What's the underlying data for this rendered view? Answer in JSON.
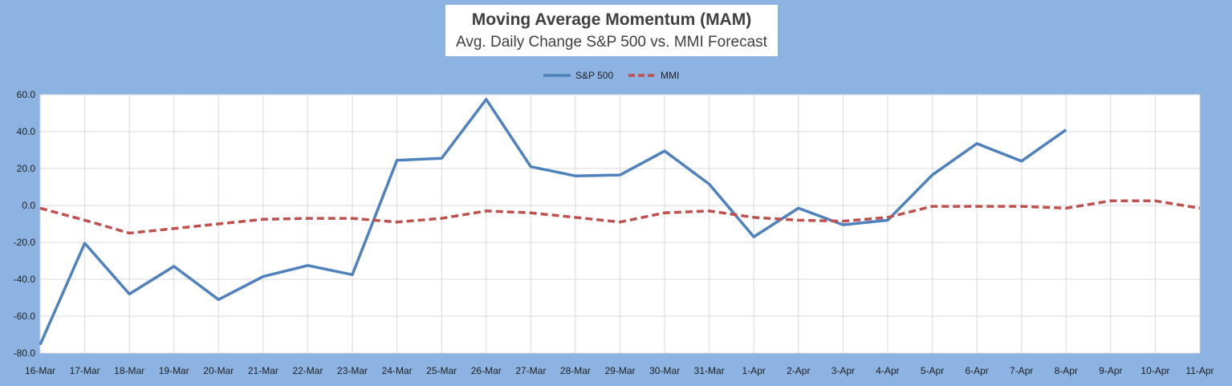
{
  "chart_data": {
    "type": "line",
    "title": "Moving Average Momentum (MAM)",
    "subtitle": "Avg. Daily Change S&P 500 vs. MMI Forecast",
    "categories": [
      "16-Mar",
      "17-Mar",
      "18-Mar",
      "19-Mar",
      "20-Mar",
      "21-Mar",
      "22-Mar",
      "23-Mar",
      "24-Mar",
      "25-Mar",
      "26-Mar",
      "27-Mar",
      "28-Mar",
      "29-Mar",
      "30-Mar",
      "31-Mar",
      "1-Apr",
      "2-Apr",
      "3-Apr",
      "4-Apr",
      "5-Apr",
      "6-Apr",
      "7-Apr",
      "8-Apr",
      "9-Apr",
      "10-Apr",
      "11-Apr"
    ],
    "series": [
      {
        "name": "S&P 500",
        "color": "#4f81bd",
        "dash": "solid",
        "values": [
          -75.5,
          -20.5,
          -48.0,
          -33.0,
          -51.0,
          -38.5,
          -32.5,
          -37.5,
          24.5,
          25.5,
          57.5,
          21.0,
          16.0,
          16.5,
          29.5,
          11.5,
          -17.0,
          -1.5,
          -10.5,
          -8.0,
          16.5,
          33.5,
          24.0,
          41.0,
          null,
          null,
          null
        ]
      },
      {
        "name": "MMI",
        "color": "#c0504d",
        "dash": "dashed",
        "values": [
          -1.5,
          -8.0,
          -15.0,
          -12.5,
          -10.0,
          -7.5,
          -7.0,
          -7.0,
          -9.0,
          -7.0,
          -3.0,
          -4.0,
          -6.5,
          -9.0,
          -4.0,
          -3.0,
          -6.5,
          -8.0,
          -8.5,
          -6.5,
          -0.5,
          -0.5,
          -0.5,
          -1.5,
          2.5,
          2.5,
          -1.5
        ]
      }
    ],
    "y_ticks": [
      "60.0",
      "40.0",
      "20.0",
      "0.0",
      "-20.0",
      "-40.0",
      "-60.0",
      "-80.0"
    ],
    "ylim": [
      -80,
      60
    ],
    "grid": true,
    "legend": "top"
  }
}
